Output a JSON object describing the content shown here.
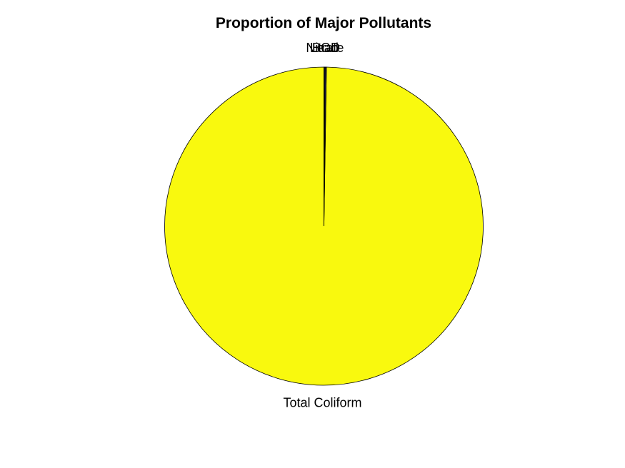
{
  "chart_data": {
    "type": "pie",
    "title": "Proportion of Major Pollutants",
    "slices": [
      {
        "label": "Total Coliform",
        "value": 99.75,
        "color": "#f9f90e"
      },
      {
        "label": "BOD",
        "value": 0.12,
        "color": "#3b3b78"
      },
      {
        "label": "Nitrate",
        "value": 0.08,
        "color": "#2f3a8a"
      },
      {
        "label": "Lead",
        "value": 0.05,
        "color": "#283a9c"
      }
    ],
    "start_angle_deg": 90,
    "direction": "counterclockwise",
    "edge_color": "#000000"
  }
}
